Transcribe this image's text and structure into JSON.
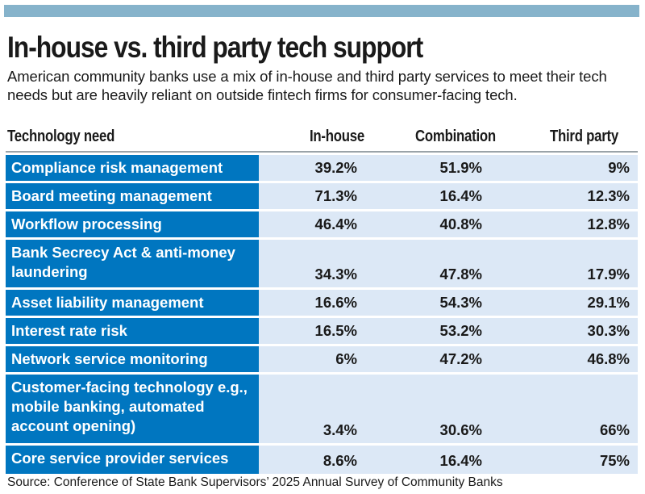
{
  "header": {
    "title": "In-house vs. third party tech support",
    "subtitle": "American community banks use a mix of in-house and third party services to meet their tech needs but are heavily reliant on outside fintech firms for consumer-facing tech."
  },
  "colors": {
    "top_bar": "#86b3cb",
    "label_column": "#0076c0",
    "value_cells": "#dce8f6",
    "header_rule": "#9aa3a8"
  },
  "chart_data": {
    "type": "table",
    "title": "In-house vs. third party tech support",
    "columns": [
      "Technology need",
      "In-house",
      "Combination",
      "Third party"
    ],
    "rows": [
      {
        "need": "Compliance risk management",
        "in_house": "39.2%",
        "combination": "51.9%",
        "third_party": "9%"
      },
      {
        "need": "Board meeting management",
        "in_house": "71.3%",
        "combination": "16.4%",
        "third_party": "12.3%"
      },
      {
        "need": "Workflow processing",
        "in_house": "46.4%",
        "combination": "40.8%",
        "third_party": "12.8%"
      },
      {
        "need": "Bank Secrecy Act & anti-money laundering",
        "in_house": "34.3%",
        "combination": "47.8%",
        "third_party": "17.9%"
      },
      {
        "need": "Asset liability management",
        "in_house": "16.6%",
        "combination": "54.3%",
        "third_party": "29.1%"
      },
      {
        "need": "Interest rate risk",
        "in_house": "16.5%",
        "combination": "53.2%",
        "third_party": "30.3%"
      },
      {
        "need": "Network service monitoring",
        "in_house": "6%",
        "combination": "47.2%",
        "third_party": "46.8%"
      },
      {
        "need": "Customer-facing technology e.g., mobile banking, automated account opening)",
        "in_house": "3.4%",
        "combination": "30.6%",
        "third_party": "66%"
      },
      {
        "need": "Core service provider services",
        "in_house": "8.6%",
        "combination": "16.4%",
        "third_party": "75%"
      }
    ]
  },
  "footer": {
    "source": "Source: Conference of State Bank Supervisors’ 2025 Annual Survey of Community Banks"
  }
}
